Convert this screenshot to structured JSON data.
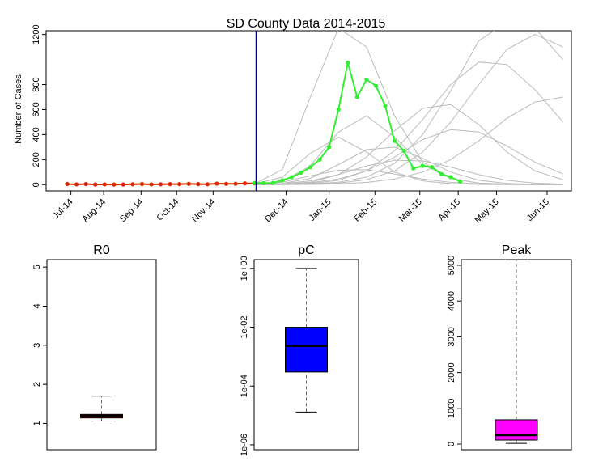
{
  "chart_data": [
    {
      "type": "line",
      "title": "SD County Data 2014-2015",
      "y_label": "Number of Cases",
      "x": [
        0,
        1,
        2,
        3,
        4,
        5,
        6,
        7,
        8,
        9,
        10,
        11,
        12,
        13,
        14,
        15,
        16,
        17,
        18,
        19,
        20,
        21,
        22,
        23,
        24,
        25,
        26,
        27,
        28,
        29,
        30,
        31,
        32,
        33,
        34,
        35,
        36,
        37,
        38,
        39,
        40,
        41,
        42,
        43,
        44,
        45,
        46,
        47,
        48,
        49,
        50,
        51,
        52,
        53
      ],
      "xlim": [
        -2.25,
        53.9
      ],
      "xticks": [
        {
          "value": 0.4,
          "label": "Jul-14"
        },
        {
          "value": 3.9,
          "label": "Aug-14"
        },
        {
          "value": 7.9,
          "label": "Sep-14"
        },
        {
          "value": 11.7,
          "label": "Oct-14"
        },
        {
          "value": 15.6,
          "label": "Nov-14"
        },
        {
          "value": 23.4,
          "label": "Dec-14"
        },
        {
          "value": 28.0,
          "label": "Jan-15"
        },
        {
          "value": 32.9,
          "label": "Feb-15"
        },
        {
          "value": 37.7,
          "label": "Mar-15"
        },
        {
          "value": 41.8,
          "label": "Apr-15"
        },
        {
          "value": 45.9,
          "label": "May-15"
        },
        {
          "value": 51.3,
          "label": "Jun-15"
        }
      ],
      "ylim": [
        -50,
        1230
      ],
      "yticks": [
        0,
        200,
        400,
        600,
        800,
        1200
      ],
      "vline": {
        "x": 20.2,
        "color": "#00008b"
      },
      "series": [
        {
          "color": "#bbbbbb",
          "x": [
            20,
            23,
            26,
            29,
            32,
            35,
            38,
            41,
            44,
            47,
            50,
            53
          ],
          "values": [
            5,
            60,
            250,
            380,
            260,
            100,
            30,
            8,
            2,
            0,
            0,
            0
          ]
        },
        {
          "color": "#bbbbbb",
          "x": [
            20,
            23,
            26,
            29,
            32,
            35,
            38,
            41,
            44,
            47,
            50,
            53
          ],
          "values": [
            3,
            25,
            150,
            420,
            550,
            380,
            160,
            50,
            12,
            3,
            1,
            0
          ]
        },
        {
          "color": "#bbbbbb",
          "x": [
            20,
            23,
            26,
            29,
            32,
            35,
            38,
            41,
            44,
            47,
            50,
            53
          ],
          "values": [
            2,
            10,
            50,
            160,
            280,
            300,
            210,
            100,
            35,
            10,
            3,
            1
          ]
        },
        {
          "color": "#bbbbbb",
          "x": [
            20,
            23,
            26,
            29,
            32,
            35,
            38,
            41,
            44,
            47,
            50,
            53
          ],
          "values": [
            1,
            5,
            20,
            80,
            220,
            430,
            610,
            640,
            480,
            260,
            110,
            40
          ]
        },
        {
          "color": "#bbbbbb",
          "x": [
            20,
            23,
            26,
            29,
            32,
            35,
            38,
            41,
            44,
            47,
            50,
            53
          ],
          "values": [
            1,
            3,
            10,
            35,
            110,
            270,
            520,
            800,
            980,
            960,
            760,
            500
          ]
        },
        {
          "color": "#bbbbbb",
          "x": [
            20,
            23,
            26,
            29,
            32,
            35,
            38,
            41,
            44,
            47,
            50,
            53
          ],
          "values": [
            5,
            120,
            700,
            1250,
            1100,
            550,
            180,
            50,
            12,
            3,
            1,
            0
          ]
        },
        {
          "color": "#bbbbbb",
          "x": [
            20,
            23,
            26,
            29,
            32,
            35,
            38,
            41,
            44,
            47,
            50,
            53
          ],
          "values": [
            0,
            1,
            4,
            12,
            40,
            110,
            260,
            500,
            800,
            1080,
            1200,
            1100
          ]
        },
        {
          "color": "#bbbbbb",
          "x": [
            20,
            23,
            26,
            29,
            32,
            35,
            38,
            41,
            44,
            47,
            50,
            53
          ],
          "values": [
            2,
            8,
            30,
            80,
            150,
            195,
            190,
            140,
            80,
            35,
            12,
            4
          ]
        },
        {
          "color": "#bbbbbb",
          "x": [
            20,
            23,
            26,
            29,
            32,
            35,
            38,
            41,
            44,
            47,
            50,
            53
          ],
          "values": [
            1,
            4,
            15,
            45,
            110,
            220,
            360,
            440,
            420,
            310,
            180,
            85
          ]
        },
        {
          "color": "#bbbbbb",
          "x": [
            20,
            23,
            26,
            29,
            32,
            35,
            38,
            41,
            44,
            47,
            50,
            53
          ],
          "values": [
            0,
            2,
            6,
            20,
            60,
            170,
            400,
            750,
            1150,
            1300,
            1250,
            1000
          ]
        },
        {
          "color": "#bbbbbb",
          "x": [
            20,
            23,
            26,
            29,
            32,
            35,
            38,
            41,
            44,
            47,
            50,
            53
          ],
          "values": [
            3,
            20,
            70,
            115,
            120,
            85,
            45,
            18,
            6,
            2,
            0,
            0
          ]
        },
        {
          "color": "#bbbbbb",
          "x": [
            20,
            23,
            26,
            29,
            32,
            35,
            38,
            41,
            44,
            47,
            50,
            53
          ],
          "values": [
            0,
            0,
            2,
            6,
            18,
            45,
            100,
            200,
            350,
            530,
            660,
            700
          ]
        },
        {
          "color": "#dd2a00",
          "markers": true,
          "values": [
            5,
            2,
            5,
            1,
            2,
            1,
            1,
            3,
            5,
            2,
            3,
            4,
            4,
            6,
            4,
            3,
            8,
            6,
            7,
            10,
            10,
            null,
            null,
            null,
            null,
            null,
            null,
            null,
            null,
            null,
            null,
            null,
            null,
            null,
            null,
            null,
            null,
            null,
            null,
            null,
            null,
            null,
            null,
            null,
            null,
            null,
            null,
            null,
            null,
            null,
            null,
            null,
            null,
            null
          ]
        },
        {
          "color": "#33ee33",
          "markers": true,
          "values": [
            null,
            null,
            null,
            null,
            null,
            null,
            null,
            null,
            null,
            null,
            null,
            null,
            null,
            null,
            null,
            null,
            null,
            null,
            null,
            null,
            13,
            12,
            14,
            35,
            60,
            95,
            140,
            200,
            300,
            600,
            975,
            700,
            840,
            790,
            630,
            350,
            270,
            130,
            150,
            140,
            85,
            60,
            25,
            null,
            null,
            null,
            null,
            null,
            null,
            null,
            null,
            null,
            null,
            null
          ]
        }
      ]
    },
    {
      "type": "box",
      "title": "R0",
      "color": "#8b1a1a",
      "ylim": [
        0.326,
        5.19
      ],
      "yticks": [
        1,
        2,
        3,
        4,
        5
      ],
      "whisker_low": 1.06,
      "q1": 1.14,
      "median": 1.19,
      "q3": 1.23,
      "whisker_high": 1.7
    },
    {
      "type": "box",
      "title": "pC",
      "color": "#0000ff",
      "log": true,
      "ylim": [
        6.8e-07,
        1.99
      ],
      "yticks": [
        {
          "value": 1,
          "label": "1e+00"
        },
        {
          "value": 0.01,
          "label": "1e-02"
        },
        {
          "value": 0.0001,
          "label": "1e-04"
        },
        {
          "value": 1e-06,
          "label": "1e-06"
        }
      ],
      "whisker_low": 1.3e-05,
      "q1": 0.0003,
      "median": 0.0023,
      "q3": 0.01,
      "whisker_high": 1
    },
    {
      "type": "box",
      "title": "Peak",
      "color": "#ff00ff",
      "ylim": [
        -158,
        5158
      ],
      "yticks": [
        0,
        1000,
        2000,
        3000,
        4000,
        5000
      ],
      "whisker_low": 20,
      "q1": 113,
      "median": 250,
      "q3": 680,
      "whisker_high": 5150
    }
  ]
}
